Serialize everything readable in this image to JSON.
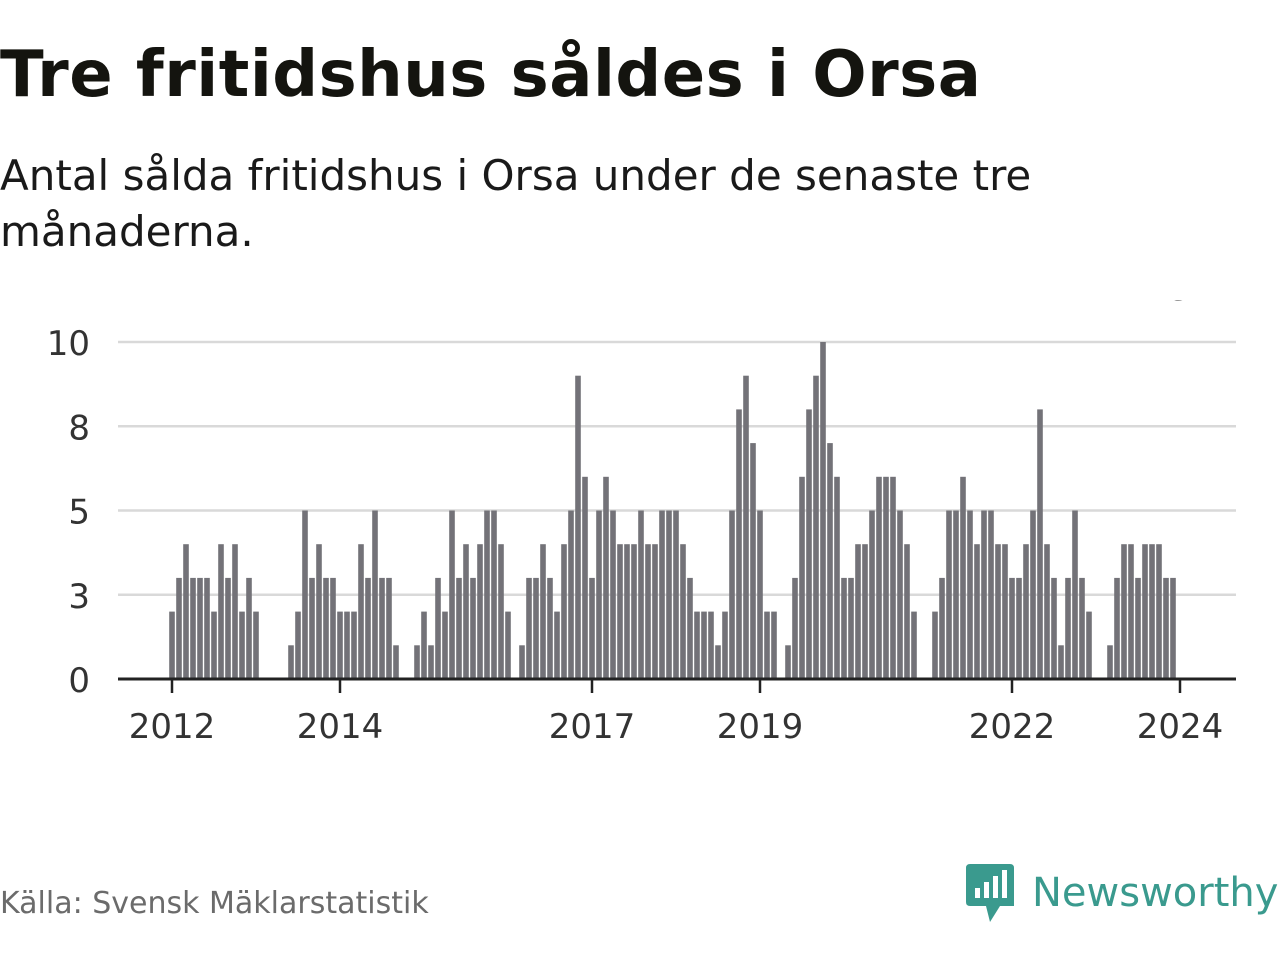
{
  "title": "Tre fritidshus såldes i Orsa",
  "subtitle": "Antal sålda fritidshus i Orsa under de senaste tre månaderna.",
  "source": "Källa: Svensk Mäklarstatistik",
  "brand": {
    "name": "Newsworthy",
    "icon": "newsworthy-logo-icon",
    "color": "#3a9a8e"
  },
  "colors": {
    "bar": "#737278",
    "highlight": "#139a8f",
    "grid": "#d9d9d9",
    "axis": "#222222"
  },
  "chart_data": {
    "type": "bar",
    "title": "Tre fritidshus såldes i Orsa",
    "xlabel": "",
    "ylabel": "",
    "ylim": [
      0,
      10
    ],
    "yticks": [
      {
        "value": 0,
        "label": "0"
      },
      {
        "value": 2.5,
        "label": "3"
      },
      {
        "value": 5,
        "label": "5"
      },
      {
        "value": 7.5,
        "label": "8"
      },
      {
        "value": 10,
        "label": "10"
      }
    ],
    "start_month": "2012-01",
    "xticks": [
      {
        "index": 0,
        "label": "2012"
      },
      {
        "index": 24,
        "label": "2014"
      },
      {
        "index": 60,
        "label": "2017"
      },
      {
        "index": 84,
        "label": "2019"
      },
      {
        "index": 120,
        "label": "2022"
      },
      {
        "index": 144,
        "label": "2024"
      }
    ],
    "values": [
      2,
      3,
      4,
      3,
      3,
      3,
      2,
      4,
      3,
      4,
      2,
      3,
      2,
      0,
      0,
      0,
      0,
      1,
      2,
      5,
      3,
      4,
      3,
      3,
      2,
      2,
      2,
      4,
      3,
      5,
      3,
      3,
      1,
      0,
      0,
      1,
      2,
      1,
      3,
      2,
      5,
      3,
      4,
      3,
      4,
      5,
      5,
      4,
      2,
      0,
      1,
      3,
      3,
      4,
      3,
      2,
      4,
      5,
      9,
      6,
      3,
      5,
      6,
      5,
      4,
      4,
      4,
      5,
      4,
      4,
      5,
      5,
      5,
      4,
      3,
      2,
      2,
      2,
      1,
      2,
      5,
      8,
      9,
      7,
      5,
      2,
      2,
      0,
      1,
      3,
      6,
      8,
      9,
      10,
      7,
      6,
      3,
      3,
      4,
      4,
      5,
      6,
      6,
      6,
      5,
      4,
      2,
      0,
      0,
      2,
      3,
      5,
      5,
      6,
      5,
      4,
      5,
      5,
      4,
      4,
      3,
      3,
      4,
      5,
      8,
      4,
      3,
      1,
      3,
      5,
      3,
      2,
      0,
      0,
      1,
      3,
      4,
      4,
      3,
      4,
      4,
      4,
      3,
      3
    ],
    "highlight_index": 144,
    "highlight_label": "3"
  }
}
